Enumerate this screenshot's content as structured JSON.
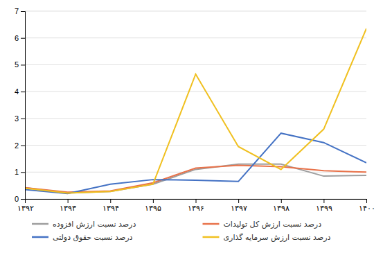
{
  "chart_data": {
    "type": "line",
    "x": [
      1392,
      1393,
      1394,
      1395,
      1396,
      1397,
      1398,
      1399,
      1400
    ],
    "series": [
      {
        "name": "درصد نسبت ارزش افزوده",
        "color": "#9E9E9E",
        "values": [
          0.42,
          0.22,
          0.28,
          0.55,
          1.1,
          1.3,
          1.3,
          0.85,
          0.88
        ]
      },
      {
        "name": "درصد نسبت ارزش کل تولیدات",
        "color": "#E8724A",
        "values": [
          0.42,
          0.25,
          0.3,
          0.6,
          1.15,
          1.25,
          1.2,
          1.05,
          1.0
        ]
      },
      {
        "name": "درصد نسبت حقوق دولتی",
        "color": "#4472C4",
        "values": [
          0.35,
          0.2,
          0.55,
          0.72,
          0.7,
          0.65,
          2.45,
          2.1,
          1.35
        ]
      },
      {
        "name": "درصد نسبت ارزش سرمایه گذاری",
        "color": "#F0C020",
        "values": [
          0.4,
          0.22,
          0.28,
          0.55,
          4.65,
          1.95,
          1.1,
          2.6,
          6.35
        ]
      }
    ],
    "xlim": [
      1392,
      1400
    ],
    "xticks": [
      {
        "value": 1392,
        "label": "۱۳۹۲"
      },
      {
        "value": 1393,
        "label": "۱۳۹۳"
      },
      {
        "value": 1394,
        "label": "۱۳۹۴"
      },
      {
        "value": 1395,
        "label": "۱۳۹۵"
      },
      {
        "value": 1396,
        "label": "۱۳۹۶"
      },
      {
        "value": 1397,
        "label": "۱۳۹۷"
      },
      {
        "value": 1398,
        "label": "۱۳۹۸"
      },
      {
        "value": 1399,
        "label": "۱۳۹۹"
      },
      {
        "value": 1400,
        "label": "۱۴۰۰"
      }
    ],
    "ylim": [
      0,
      7
    ],
    "yticks": [
      0,
      1,
      2,
      3,
      4,
      5,
      6,
      7
    ],
    "grid": true
  }
}
